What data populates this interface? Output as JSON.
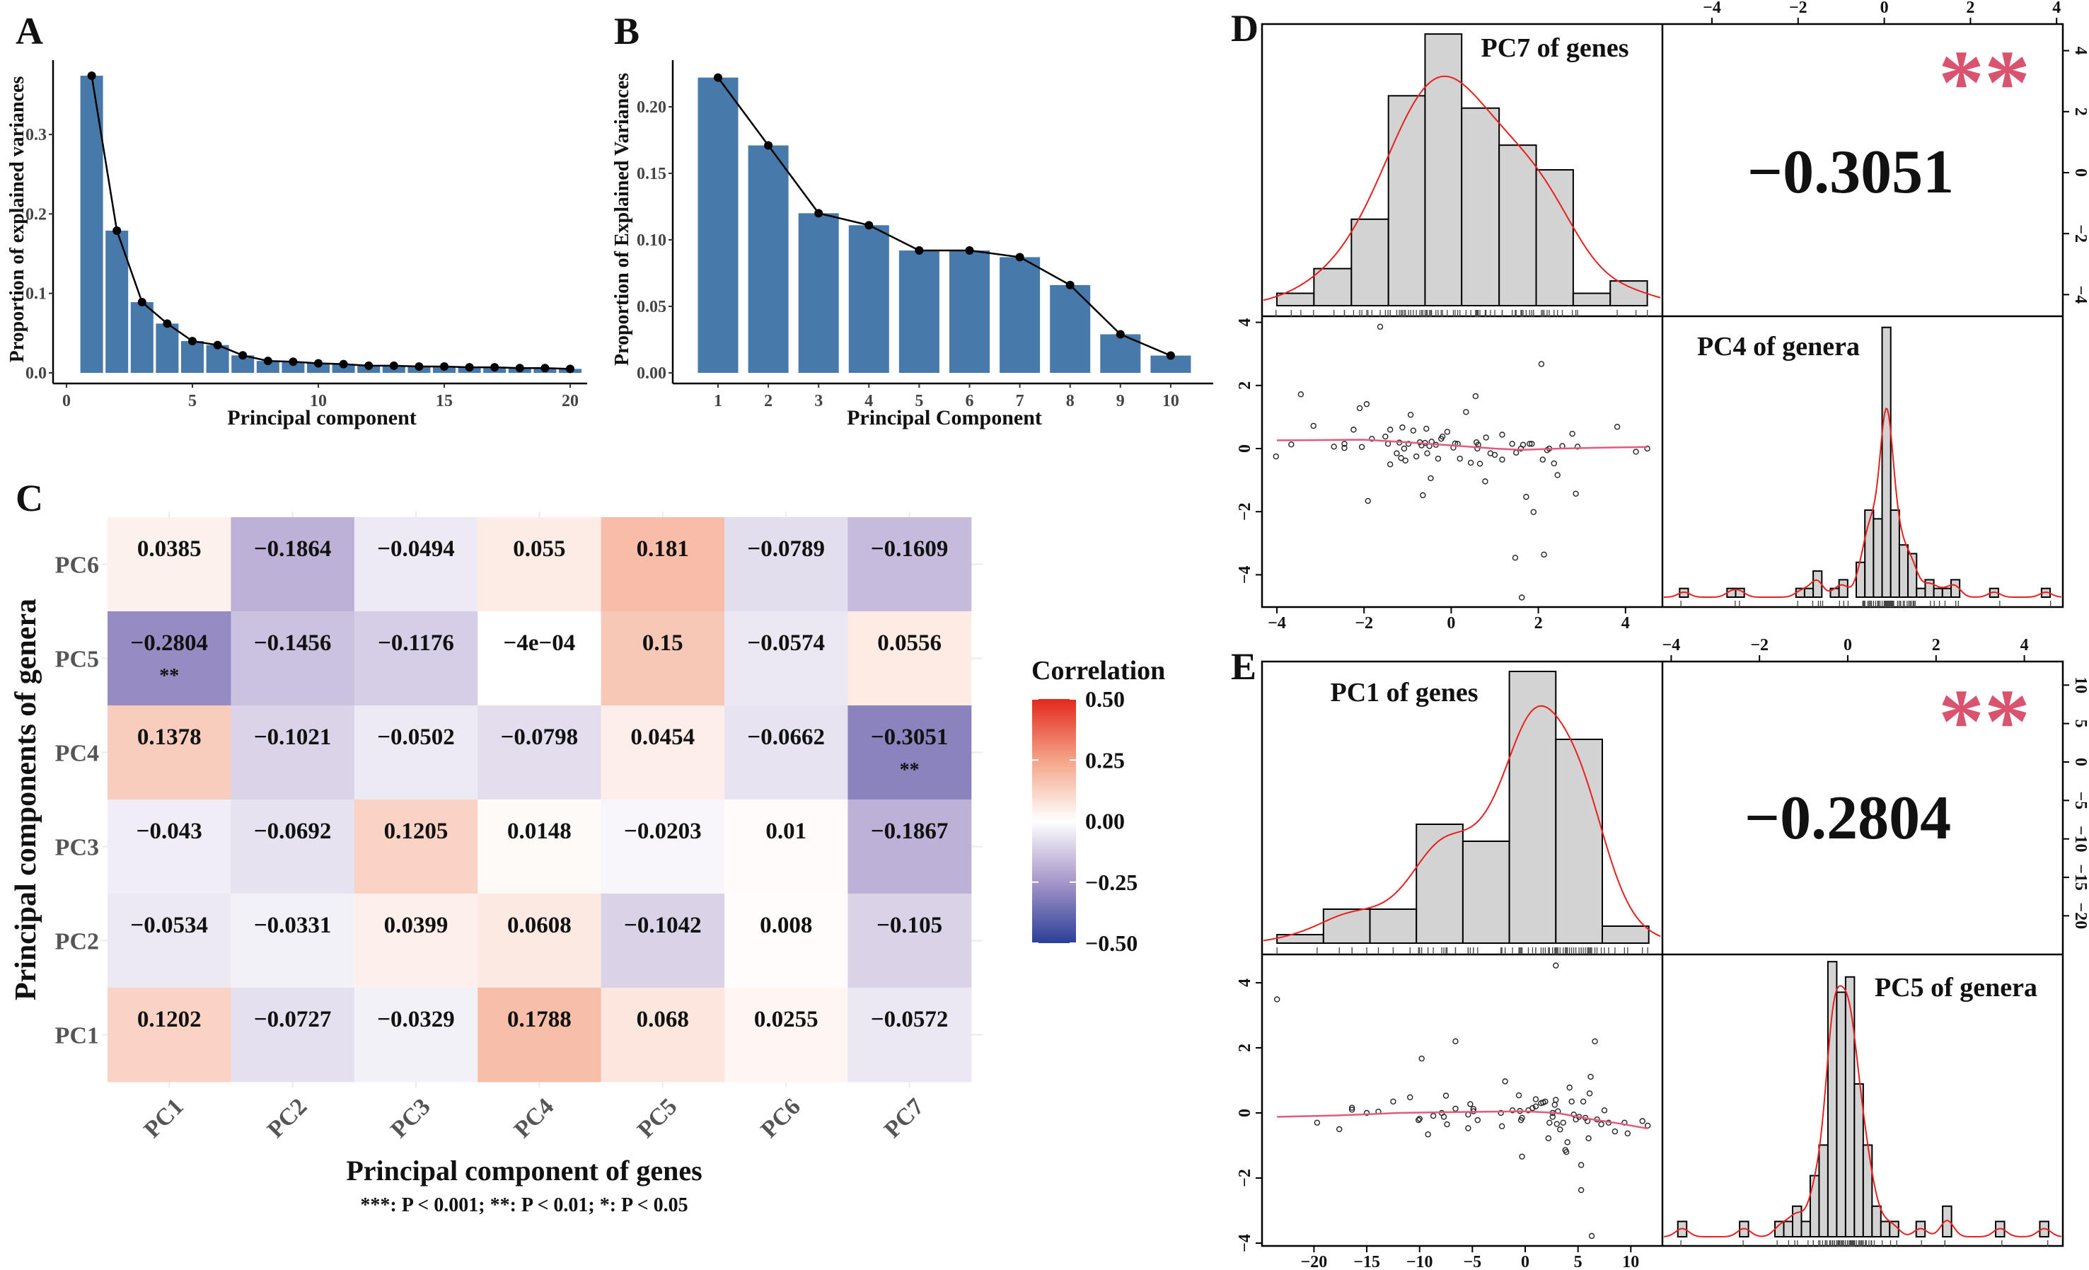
{
  "panel_labels": [
    "A",
    "B",
    "C",
    "D",
    "E"
  ],
  "chart_data": [
    {
      "panel": "A",
      "type": "bar",
      "xlabel": "Principal component",
      "ylabel": "Proportion of explained variances",
      "categories": [
        1,
        2,
        3,
        4,
        5,
        6,
        7,
        8,
        9,
        10,
        11,
        12,
        13,
        14,
        15,
        16,
        17,
        18,
        19,
        20
      ],
      "values": [
        0.374,
        0.179,
        0.089,
        0.062,
        0.04,
        0.035,
        0.022,
        0.015,
        0.014,
        0.012,
        0.011,
        0.009,
        0.009,
        0.008,
        0.008,
        0.007,
        0.007,
        0.006,
        0.006,
        0.005
      ],
      "overlay": "line with points",
      "x_ticks": [
        "0",
        "5",
        "10",
        "15",
        "20"
      ],
      "y_ticks": [
        "0.0",
        "0.1",
        "0.2",
        "0.3"
      ],
      "bar_color": "#4779aa",
      "grid": false
    },
    {
      "panel": "B",
      "type": "bar",
      "xlabel": "Principal Component",
      "ylabel": "Proportion of Explained Variances",
      "categories": [
        1,
        2,
        3,
        4,
        5,
        6,
        7,
        8,
        9,
        10
      ],
      "values": [
        0.222,
        0.171,
        0.12,
        0.111,
        0.092,
        0.092,
        0.087,
        0.066,
        0.029,
        0.013
      ],
      "overlay": "line with points",
      "x_ticks": [
        "1",
        "2",
        "3",
        "4",
        "5",
        "6",
        "7",
        "8",
        "9",
        "10"
      ],
      "y_ticks": [
        "0.00",
        "0.05",
        "0.10",
        "0.15",
        "0.20"
      ],
      "bar_color": "#4779aa",
      "grid": false
    },
    {
      "panel": "C",
      "type": "heatmap",
      "xlabel": "Principal component of genes",
      "ylabel": "Principal components of genera",
      "footnote": "***: P < 0.001; **: P < 0.01; *: P < 0.05",
      "columns": [
        "PC1",
        "PC2",
        "PC3",
        "PC4",
        "PC5",
        "PC6",
        "PC7"
      ],
      "rows": [
        "PC6",
        "PC5",
        "PC4",
        "PC3",
        "PC2",
        "PC1"
      ],
      "values": [
        [
          0.0385,
          -0.1864,
          -0.0494,
          0.055,
          0.181,
          -0.0789,
          -0.1609
        ],
        [
          -0.2804,
          -0.1456,
          -0.1176,
          -0.0004,
          0.15,
          -0.0574,
          0.0556
        ],
        [
          0.1378,
          -0.1021,
          -0.0502,
          -0.0798,
          0.0454,
          -0.0662,
          -0.3051
        ],
        [
          -0.043,
          -0.0692,
          0.1205,
          0.0148,
          -0.0203,
          0.01,
          -0.1867
        ],
        [
          -0.0534,
          -0.0331,
          0.0399,
          0.0608,
          -0.1042,
          0.008,
          -0.105
        ],
        [
          0.1202,
          -0.0727,
          -0.0329,
          0.1788,
          0.068,
          0.0255,
          -0.0572
        ]
      ],
      "labels": [
        [
          "0.0385",
          "−0.1864",
          "−0.0494",
          "0.055",
          "0.181",
          "−0.0789",
          "−0.1609"
        ],
        [
          "−0.2804",
          "−0.1456",
          "−0.1176",
          "−4e−04",
          "0.15",
          "−0.0574",
          "0.0556"
        ],
        [
          "0.1378",
          "−0.1021",
          "−0.0502",
          "−0.0798",
          "0.0454",
          "−0.0662",
          "−0.3051"
        ],
        [
          "−0.043",
          "−0.0692",
          "0.1205",
          "0.0148",
          "−0.0203",
          "0.01",
          "−0.1867"
        ],
        [
          "−0.0534",
          "−0.0331",
          "0.0399",
          "0.0608",
          "−0.1042",
          "0.008",
          "−0.105"
        ],
        [
          "0.1202",
          "−0.0727",
          "−0.0329",
          "0.1788",
          "0.068",
          "0.0255",
          "−0.0572"
        ]
      ],
      "significance": [
        [
          "",
          "",
          "",
          "",
          "",
          "",
          ""
        ],
        [
          "**",
          "",
          "",
          "",
          "",
          "",
          ""
        ],
        [
          "",
          "",
          "",
          "",
          "",
          "",
          "**"
        ],
        [
          "",
          "",
          "",
          "",
          "",
          "",
          ""
        ],
        [
          "",
          "",
          "",
          "",
          "",
          "",
          ""
        ],
        [
          "",
          "",
          "",
          "",
          "",
          "",
          ""
        ]
      ],
      "legend": {
        "title": "Correlation",
        "ticks": [
          "0.50",
          "0.25",
          "0.00",
          "−0.25",
          "−0.50"
        ],
        "range": [
          -0.5,
          0.5
        ],
        "colors": {
          "low": "#2b3f98",
          "mid_low": "#a696c9",
          "mid": "#ffffff",
          "mid_high": "#f4a487",
          "high": "#e3281e"
        }
      }
    },
    {
      "panel": "D",
      "type": "scatter",
      "kind": "pairs plot",
      "var_x_label": "PC7 of genes",
      "var_y_label": "PC4 of genera",
      "correlation": "−0.3051",
      "stars": "**",
      "star_color": "#d9536f",
      "top_axis_ticks": [
        "−4",
        "−2",
        "0",
        "2",
        "4"
      ],
      "right_axis_ticks": [
        "4",
        "2",
        "0",
        "−2",
        "−4"
      ],
      "bottom_axis_ticks": [
        "−4",
        "−2",
        "0",
        "2",
        "4"
      ],
      "left_axis_ticks": [
        "4",
        "2",
        "0",
        "−2",
        "−4"
      ],
      "hist_x": {
        "edges": [
          -4,
          -3.15,
          -2.29,
          -1.44,
          -0.6,
          0.24,
          1.1,
          1.95,
          2.8,
          3.65,
          4.5
        ],
        "counts": [
          1,
          3,
          7,
          17,
          22,
          16,
          13,
          11,
          1,
          2
        ]
      },
      "hist_y": {
        "bin_width": 0.2,
        "centers": [
          -4.65,
          -3.55,
          -3.35,
          -1.95,
          -1.75,
          -1.55,
          -1.15,
          -0.95,
          -0.55,
          -0.35,
          -0.15,
          0.05,
          0.25,
          0.45,
          0.65,
          0.85,
          1.05,
          1.25,
          1.45,
          1.65,
          2.55,
          3.75
        ],
        "counts": [
          1,
          1,
          1,
          1,
          1,
          3,
          1,
          2,
          4,
          10,
          9,
          31,
          10,
          6,
          5,
          1,
          2,
          1,
          1,
          2,
          1,
          1
        ]
      },
      "points": [
        [
          -4.02,
          -0.25
        ],
        [
          -3.67,
          0.13
        ],
        [
          -3.45,
          1.72
        ],
        [
          -3.16,
          0.72
        ],
        [
          -2.69,
          0.06
        ],
        [
          -2.45,
          0.15
        ],
        [
          -2.45,
          0.02
        ],
        [
          -2.24,
          0.6
        ],
        [
          -2.1,
          1.28
        ],
        [
          -2.05,
          0.05
        ],
        [
          -1.94,
          1.41
        ],
        [
          -1.91,
          -1.66
        ],
        [
          -1.82,
          0.31
        ],
        [
          -1.63,
          3.86
        ],
        [
          -1.51,
          0.38
        ],
        [
          -1.45,
          0.15
        ],
        [
          -1.4,
          -0.5
        ],
        [
          -1.4,
          0.6
        ],
        [
          -1.25,
          -0.15
        ],
        [
          -1.19,
          0.19
        ],
        [
          -1.15,
          -0.3
        ],
        [
          -1.12,
          0.67
        ],
        [
          -1.08,
          0.0
        ],
        [
          -1.05,
          -0.38
        ],
        [
          -0.98,
          0.15
        ],
        [
          -0.93,
          1.07
        ],
        [
          -0.87,
          0.57
        ],
        [
          -0.8,
          -0.25
        ],
        [
          -0.72,
          0.2
        ],
        [
          -0.68,
          0.1
        ],
        [
          -0.65,
          -1.48
        ],
        [
          -0.6,
          0.18
        ],
        [
          -0.57,
          0.63
        ],
        [
          -0.55,
          -0.15
        ],
        [
          -0.5,
          0.08
        ],
        [
          -0.47,
          -0.94
        ],
        [
          -0.45,
          0.22
        ],
        [
          -0.35,
          0.12
        ],
        [
          -0.3,
          -0.32
        ],
        [
          -0.23,
          0.31
        ],
        [
          -0.2,
          0.38
        ],
        [
          -0.09,
          0.53
        ],
        [
          0.05,
          0.03
        ],
        [
          0.09,
          0.16
        ],
        [
          0.15,
          0.15
        ],
        [
          0.2,
          -0.32
        ],
        [
          0.34,
          1.16
        ],
        [
          0.45,
          -0.45
        ],
        [
          0.56,
          1.66
        ],
        [
          0.58,
          0.2
        ],
        [
          0.6,
          0.0
        ],
        [
          0.62,
          0.12
        ],
        [
          0.66,
          -0.48
        ],
        [
          0.78,
          -1.04
        ],
        [
          0.8,
          0.35
        ],
        [
          0.9,
          -0.15
        ],
        [
          1.0,
          -0.2
        ],
        [
          1.17,
          0.44
        ],
        [
          1.17,
          -0.35
        ],
        [
          1.4,
          0.15
        ],
        [
          1.49,
          -0.13
        ],
        [
          1.47,
          -3.46
        ],
        [
          1.6,
          0.0
        ],
        [
          1.62,
          -4.72
        ],
        [
          1.65,
          0.12
        ],
        [
          1.72,
          -1.53
        ],
        [
          1.8,
          0.15
        ],
        [
          1.85,
          0.15
        ],
        [
          1.89,
          -2.01
        ],
        [
          2.07,
          2.68
        ],
        [
          2.1,
          -0.35
        ],
        [
          2.13,
          -3.36
        ],
        [
          2.2,
          -0.05
        ],
        [
          2.25,
          0.0
        ],
        [
          2.36,
          -0.47
        ],
        [
          2.44,
          -0.84
        ],
        [
          2.55,
          0.08
        ],
        [
          2.78,
          0.47
        ],
        [
          2.86,
          -1.43
        ],
        [
          2.9,
          0.06
        ],
        [
          3.81,
          0.69
        ],
        [
          4.24,
          -0.1
        ],
        [
          4.5,
          0.0
        ]
      ],
      "smooth_line": [
        [
          -4.0,
          0.26
        ],
        [
          -3.0,
          0.27
        ],
        [
          -2.0,
          0.28
        ],
        [
          -1.0,
          0.2
        ],
        [
          0.0,
          0.1
        ],
        [
          1.0,
          0.0
        ],
        [
          1.6,
          -0.04
        ],
        [
          2.5,
          0.0
        ],
        [
          3.5,
          0.03
        ],
        [
          4.5,
          0.05
        ]
      ]
    },
    {
      "panel": "E",
      "type": "scatter",
      "kind": "pairs plot",
      "var_x_label": "PC1 of genes",
      "var_y_label": "PC5 of genera",
      "correlation": "−0.2804",
      "stars": "**",
      "star_color": "#d9536f",
      "top_axis_ticks": [
        "−4",
        "−2",
        "0",
        "2",
        "4"
      ],
      "right_axis_ticks": [
        "10",
        "5",
        "0",
        "−5",
        "−10",
        "−15",
        "−20"
      ],
      "bottom_axis_ticks": [
        "−20",
        "−15",
        "−10",
        "−5",
        "0",
        "5",
        "10"
      ],
      "left_axis_ticks": [
        "4",
        "2",
        "0",
        "−2",
        "−4"
      ],
      "hist_x": {
        "edges": [
          -23.5,
          -19.1,
          -14.7,
          -10.3,
          -5.9,
          -1.5,
          2.9,
          7.3,
          11.7
        ],
        "counts": [
          1,
          4,
          4,
          14,
          12,
          32,
          24,
          2
        ]
      },
      "hist_y": {
        "bin_width": 0.2,
        "centers": [
          -3.75,
          -2.35,
          -1.55,
          -1.35,
          -1.15,
          -0.95,
          -0.75,
          -0.55,
          -0.35,
          -0.15,
          0.05,
          0.25,
          0.45,
          0.65,
          0.85,
          1.05,
          1.65,
          2.25,
          3.45,
          4.45
        ],
        "counts": [
          1,
          1,
          1,
          1,
          2,
          1,
          4,
          6,
          18,
          16,
          17,
          10,
          6,
          2,
          1,
          1,
          1,
          2,
          1,
          1
        ]
      },
      "points": [
        [
          -23.5,
          3.49
        ],
        [
          -19.7,
          -0.3
        ],
        [
          -17.6,
          -0.5
        ],
        [
          -16.4,
          0.16
        ],
        [
          -16.4,
          0.1
        ],
        [
          -15,
          0.0
        ],
        [
          -13.9,
          0.04
        ],
        [
          -12.5,
          0.35
        ],
        [
          -10.9,
          0.48
        ],
        [
          -10.1,
          -0.22
        ],
        [
          -10.0,
          -0.18
        ],
        [
          -9.8,
          1.67
        ],
        [
          -9.2,
          -0.66
        ],
        [
          -8.7,
          -0.09
        ],
        [
          -7.9,
          0.0
        ],
        [
          -7.7,
          -0.12
        ],
        [
          -7.5,
          0.53
        ],
        [
          -7.4,
          -0.35
        ],
        [
          -6.6,
          2.2
        ],
        [
          -6.6,
          0.13
        ],
        [
          -5.4,
          -0.47
        ],
        [
          -5.4,
          -0.05
        ],
        [
          -5.2,
          0.27
        ],
        [
          -4.9,
          0.12
        ],
        [
          -4.9,
          0.05
        ],
        [
          -4.5,
          -0.22
        ],
        [
          -2.3,
          0.0
        ],
        [
          -2.2,
          -0.41
        ],
        [
          -1.9,
          0.97
        ],
        [
          -1.2,
          0.08
        ],
        [
          -0.6,
          0.54
        ],
        [
          -0.5,
          0.06
        ],
        [
          -0.3,
          -1.34
        ],
        [
          -0.4,
          -0.22
        ],
        [
          -0.3,
          -0.15
        ],
        [
          0.3,
          0.08
        ],
        [
          0.7,
          0.15
        ],
        [
          1.0,
          0.42
        ],
        [
          1.0,
          0.2
        ],
        [
          1.5,
          0.3
        ],
        [
          1.7,
          0.32
        ],
        [
          1.9,
          0.35
        ],
        [
          2.2,
          -0.78
        ],
        [
          2.3,
          -0.3
        ],
        [
          2.6,
          0.0
        ],
        [
          2.6,
          -0.12
        ],
        [
          2.8,
          0.25
        ],
        [
          2.9,
          4.53
        ],
        [
          2.9,
          0.4
        ],
        [
          3.0,
          -0.34
        ],
        [
          3.1,
          0.05
        ],
        [
          3.3,
          -0.51
        ],
        [
          3.6,
          -0.3
        ],
        [
          3.8,
          -1.14
        ],
        [
          3.9,
          -1.2
        ],
        [
          4.0,
          -0.9
        ],
        [
          4.2,
          0.78
        ],
        [
          4.4,
          0.35
        ],
        [
          4.6,
          -0.05
        ],
        [
          4.8,
          -0.2
        ],
        [
          5.1,
          -0.12
        ],
        [
          5.3,
          -1.6
        ],
        [
          5.3,
          -2.37
        ],
        [
          5.5,
          0.35
        ],
        [
          5.7,
          -0.15
        ],
        [
          5.9,
          -0.25
        ],
        [
          6.0,
          -0.78
        ],
        [
          6.1,
          0.6
        ],
        [
          6.2,
          1.11
        ],
        [
          6.3,
          -3.78
        ],
        [
          6.6,
          2.2
        ],
        [
          6.8,
          -0.2
        ],
        [
          7.2,
          -0.35
        ],
        [
          7.5,
          0.08
        ],
        [
          7.9,
          -0.3
        ],
        [
          8.5,
          -0.57
        ],
        [
          9.4,
          -0.3
        ],
        [
          9.7,
          -0.63
        ],
        [
          11.1,
          -0.25
        ],
        [
          11.6,
          -0.39
        ]
      ],
      "smooth_line": [
        [
          -23.5,
          -0.12
        ],
        [
          -18,
          -0.08
        ],
        [
          -12,
          0.0
        ],
        [
          -6,
          0.03
        ],
        [
          0,
          0.05
        ],
        [
          3,
          0.0
        ],
        [
          6,
          -0.18
        ],
        [
          9,
          -0.33
        ],
        [
          11.6,
          -0.48
        ]
      ]
    }
  ]
}
